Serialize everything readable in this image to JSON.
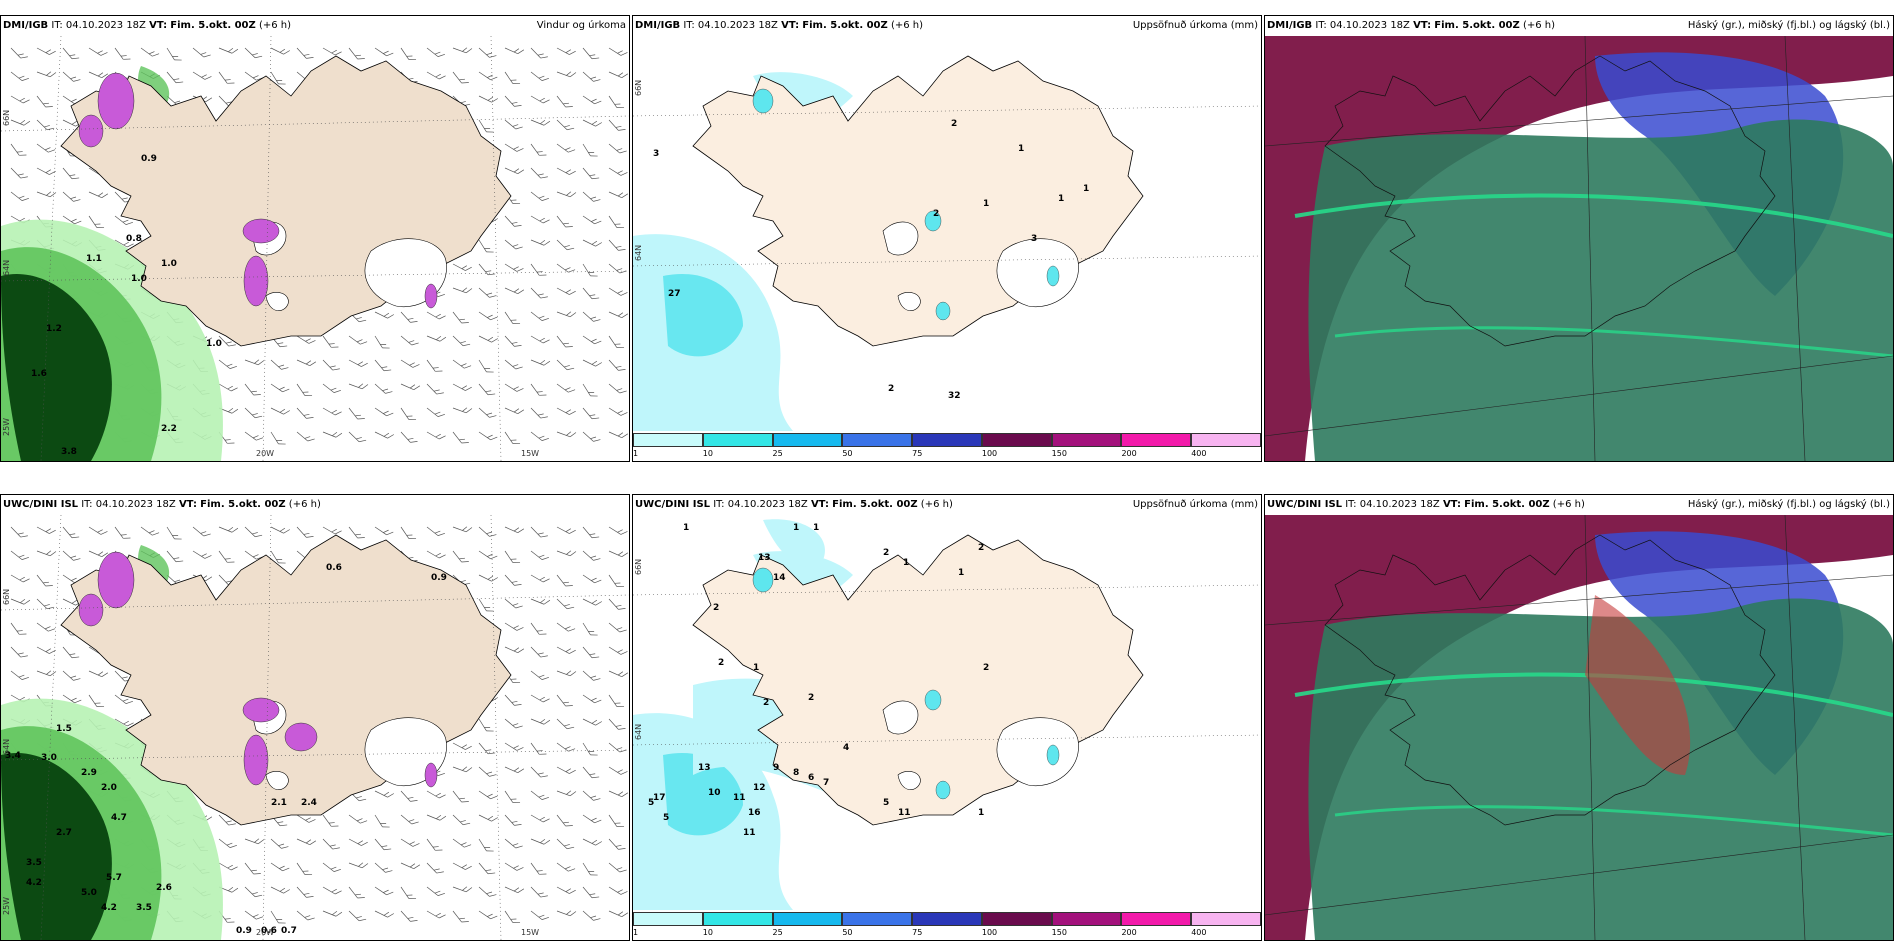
{
  "panels": [
    {
      "id": "p1",
      "model": "DMI/IGB",
      "it": "IT: 04.10.2023 18Z",
      "vt_label": "VT:",
      "vt": "Fim. 5.okt. 00Z",
      "lead": "(+6 h)",
      "product": "Vindur og úrkoma",
      "type": "wind"
    },
    {
      "id": "p2",
      "model": "DMI/IGB",
      "it": "IT: 04.10.2023 18Z",
      "vt_label": "VT:",
      "vt": "Fim. 5.okt. 00Z",
      "lead": "(+6 h)",
      "product": "Uppsöfnuð úrkoma (mm)",
      "type": "accum"
    },
    {
      "id": "p3",
      "model": "DMI/IGB",
      "it": "IT: 04.10.2023 18Z",
      "vt_label": "VT:",
      "vt": "Fim. 5.okt. 00Z",
      "lead": "(+6 h)",
      "product": "Háský (gr.), miðský (fj.bl.) og lágský (bl.)",
      "type": "cloud"
    },
    {
      "id": "p4",
      "model": "UWC/DINI ISL",
      "it": "IT: 04.10.2023 18Z",
      "vt_label": "VT:",
      "vt": "Fim. 5.okt. 00Z",
      "lead": "(+6 h)",
      "product": "",
      "type": "wind"
    },
    {
      "id": "p5",
      "model": "UWC/DINI ISL",
      "it": "IT: 04.10.2023 18Z",
      "vt_label": "VT:",
      "vt": "Fim. 5.okt. 00Z",
      "lead": "(+6 h)",
      "product": "Uppsöfnuð úrkoma (mm)",
      "type": "accum"
    },
    {
      "id": "p6",
      "model": "UWC/DINI ISL",
      "it": "IT: 04.10.2023 18Z",
      "vt_label": "VT:",
      "vt": "Fim. 5.okt. 00Z",
      "lead": "(+6 h)",
      "product": "Háský (gr.), miðský (fj.bl.) og lágský (bl.)",
      "type": "cloud"
    }
  ],
  "axis_labels": {
    "lat_66": "66N",
    "lat_65": "64N",
    "lon_25": "25W",
    "lon_20": "20W",
    "lon_15": "15W"
  },
  "legend": {
    "ticks": [
      "1",
      "10",
      "25",
      "50",
      "75",
      "100",
      "150",
      "200",
      "400"
    ],
    "colors": [
      "#c8fbfb",
      "#33e6e6",
      "#16b9ee",
      "#3a73e8",
      "#2a37b8",
      "#6a0b4d",
      "#a3117c",
      "#f21aaa",
      "#f7b4f0"
    ]
  },
  "p1_values": [
    "0.9",
    "1.0",
    "1.1",
    "1.0",
    "1.2",
    "1.0",
    "1.6",
    "2.2",
    "3.8",
    "0.8"
  ],
  "p2_values": [
    "3",
    "27",
    "2",
    "2",
    "1",
    "1",
    "3",
    "1",
    "1",
    "2",
    "32"
  ],
  "p4_values": [
    "0.9",
    "0.6",
    "1.5",
    "3.4",
    "3.0",
    "2.9",
    "2.0",
    "4.7",
    "2.7",
    "3.5",
    "4.2",
    "5.0",
    "5.7",
    "4.2",
    "3.5",
    "2.6",
    "2.1",
    "2.4",
    "0.6",
    "0.7",
    "0.9"
  ],
  "p5_values": [
    "1",
    "1",
    "1",
    "2",
    "13",
    "14",
    "2",
    "2",
    "1",
    "2",
    "2",
    "1",
    "13",
    "17",
    "9",
    "4",
    "7",
    "6",
    "10",
    "11",
    "12",
    "16",
    "11",
    "5",
    "5",
    "8",
    "1",
    "2",
    "2",
    "11",
    "5",
    "1"
  ],
  "colors": {
    "land": "#efdfcd",
    "land_light": "#fbeee0",
    "glacier": "#ffffff",
    "precip_light": "#b7f2b4",
    "precip_mid": "#5fc45c",
    "precip_dark": "#0c4a12",
    "precip_purple": "#c85ad8",
    "accum_light": "#bff6fb",
    "accum_mid": "#5ee6ee",
    "cloud_high": "#7a1242",
    "cloud_mid": "#3a4bd0",
    "cloud_low": "#2e7a5e"
  }
}
